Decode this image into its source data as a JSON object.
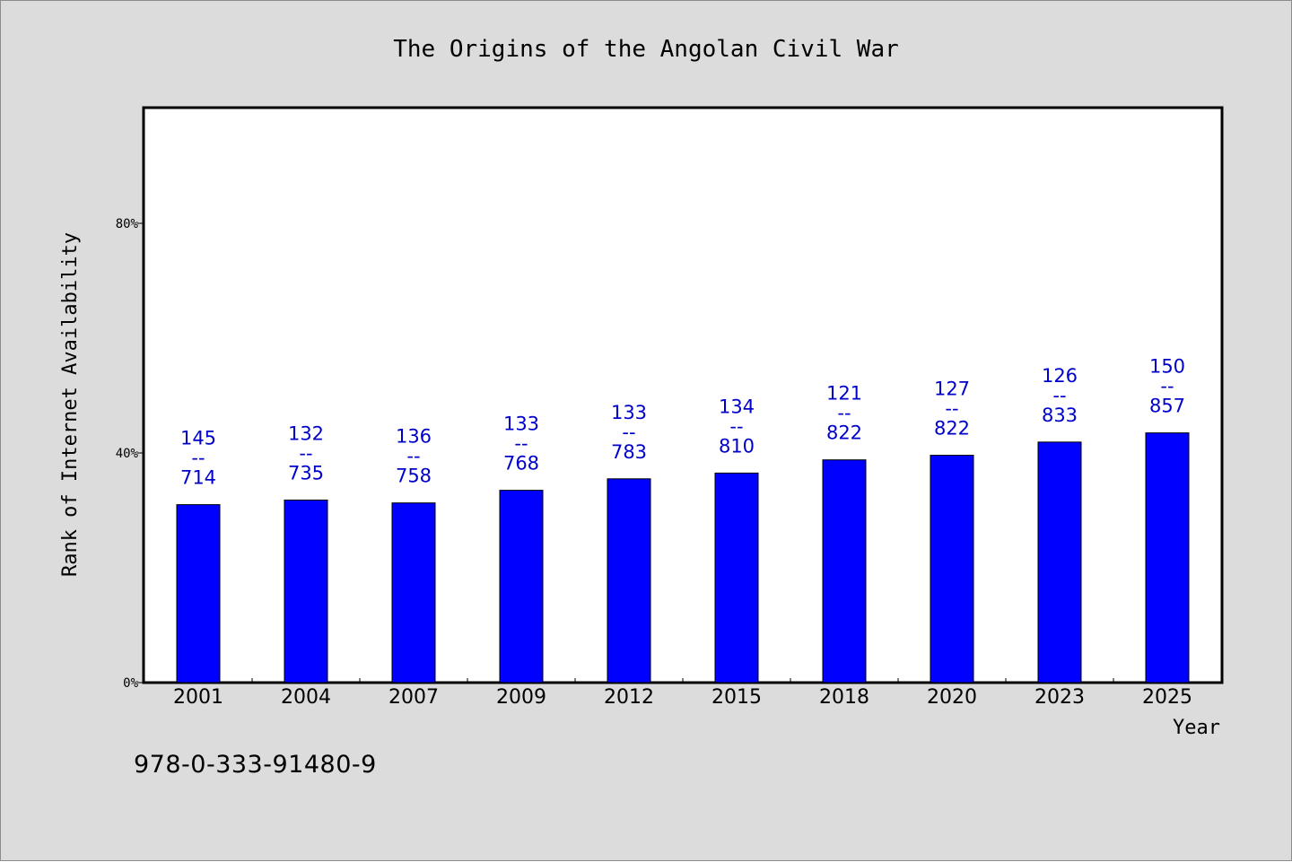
{
  "chart_data": {
    "type": "bar",
    "title": "The Origins of the Angolan Civil War",
    "xlabel": "Year",
    "ylabel": "Rank of Internet Availability",
    "categories": [
      "2001",
      "2004",
      "2007",
      "2009",
      "2012",
      "2015",
      "2018",
      "2020",
      "2023",
      "2025"
    ],
    "values": [
      31.0,
      31.8,
      31.3,
      33.5,
      35.5,
      36.5,
      38.8,
      39.6,
      41.9,
      43.5
    ],
    "label_top": [
      "145",
      "132",
      "136",
      "133",
      "133",
      "134",
      "121",
      "127",
      "126",
      "150"
    ],
    "label_sep": "--",
    "label_bottom": [
      "714",
      "735",
      "758",
      "768",
      "783",
      "810",
      "822",
      "822",
      "833",
      "857"
    ],
    "ylim": [
      0,
      100
    ],
    "yticks": [
      0,
      40,
      80
    ],
    "ytick_labels": [
      "0%",
      "40%",
      "80%"
    ],
    "grid": false,
    "colors": {
      "bar": "#0000ff",
      "label": "#0000cc",
      "background": "#dcdcdc",
      "plot_bg": "#ffffff"
    }
  },
  "footer": {
    "isbn": "978-0-333-91480-9"
  }
}
